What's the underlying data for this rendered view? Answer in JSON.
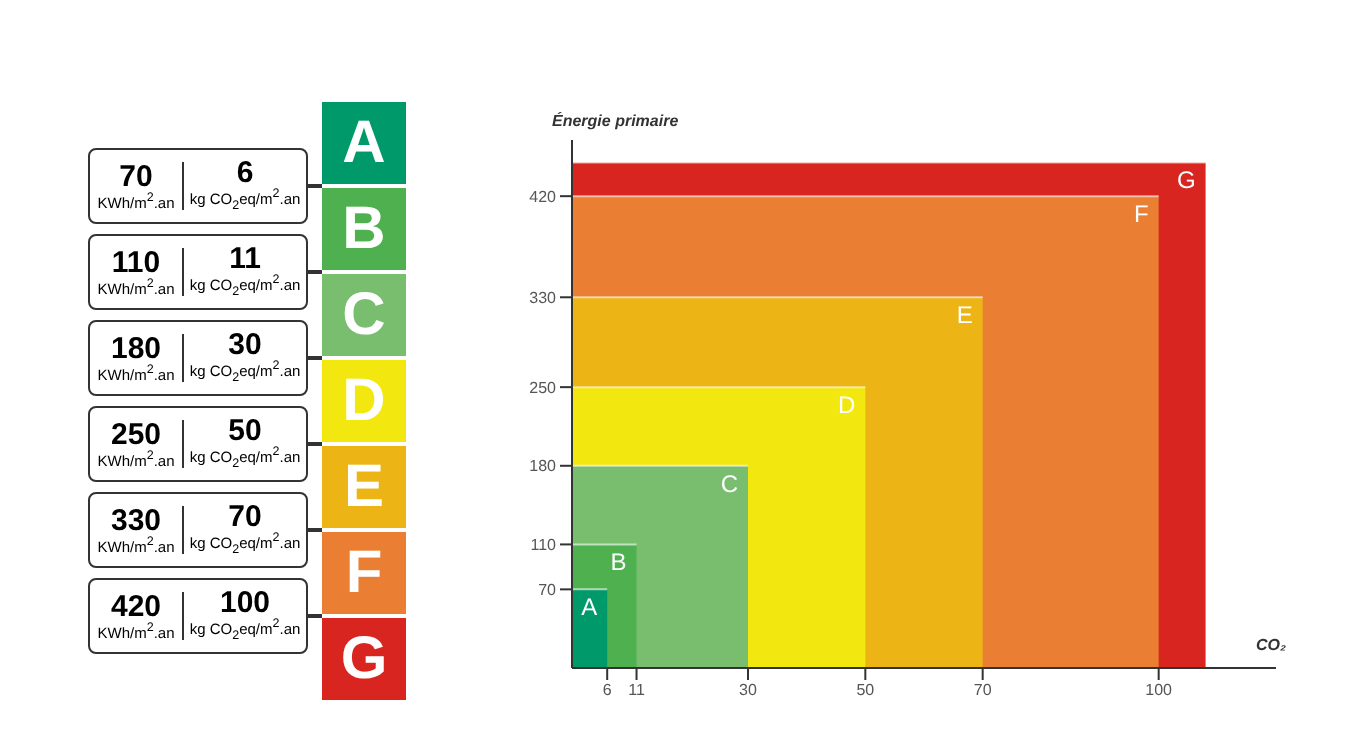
{
  "chart_data": [
    {
      "type": "other",
      "categories": [
        "A",
        "B",
        "C",
        "D",
        "E",
        "F",
        "G"
      ],
      "colors": [
        "#009a6a",
        "#4fb04f",
        "#79bd6f",
        "#f2e70f",
        "#ecb414",
        "#ea7f34",
        "#d9251f"
      ],
      "series": [
        {
          "values": [
            70,
            110,
            180,
            250,
            330,
            420,
            null
          ]
        },
        {
          "values": [
            6,
            11,
            30,
            50,
            70,
            100,
            null
          ]
        }
      ],
      "data_labels": true,
      "annotations": [
        "KWh/m$^{2}$.an",
        "kg CO$_{2}$eq/m$^{2}$.an"
      ]
    },
    {
      "type": "area",
      "series": [
        {
          "name": "A",
          "color": "#009a6a",
          "x": [
            0,
            6
          ],
          "values": [
            70,
            70
          ]
        },
        {
          "name": "B",
          "color": "#4fb04f",
          "x": [
            0,
            11
          ],
          "values": [
            110,
            110
          ]
        },
        {
          "name": "C",
          "color": "#79bd6f",
          "x": [
            0,
            30
          ],
          "values": [
            180,
            180
          ]
        },
        {
          "name": "D",
          "color": "#f2e70f",
          "x": [
            0,
            50
          ],
          "values": [
            250,
            250
          ]
        },
        {
          "name": "E",
          "color": "#ecb414",
          "x": [
            0,
            70
          ],
          "values": [
            330,
            330
          ]
        },
        {
          "name": "F",
          "color": "#ea7f34",
          "x": [
            0,
            100
          ],
          "values": [
            420,
            420
          ]
        },
        {
          "name": "G",
          "color": "#d9251f",
          "x": [
            0,
            108
          ],
          "values": [
            450,
            450
          ]
        }
      ],
      "xlim": [
        0,
        120
      ],
      "ylim": [
        0,
        470
      ],
      "xticks": [
        6,
        11,
        30,
        50,
        70,
        100
      ],
      "yticks": [
        70,
        110,
        180,
        250,
        330,
        420
      ],
      "xlabel": "CO₂",
      "ylabel": "Énergie primaire"
    }
  ]
}
